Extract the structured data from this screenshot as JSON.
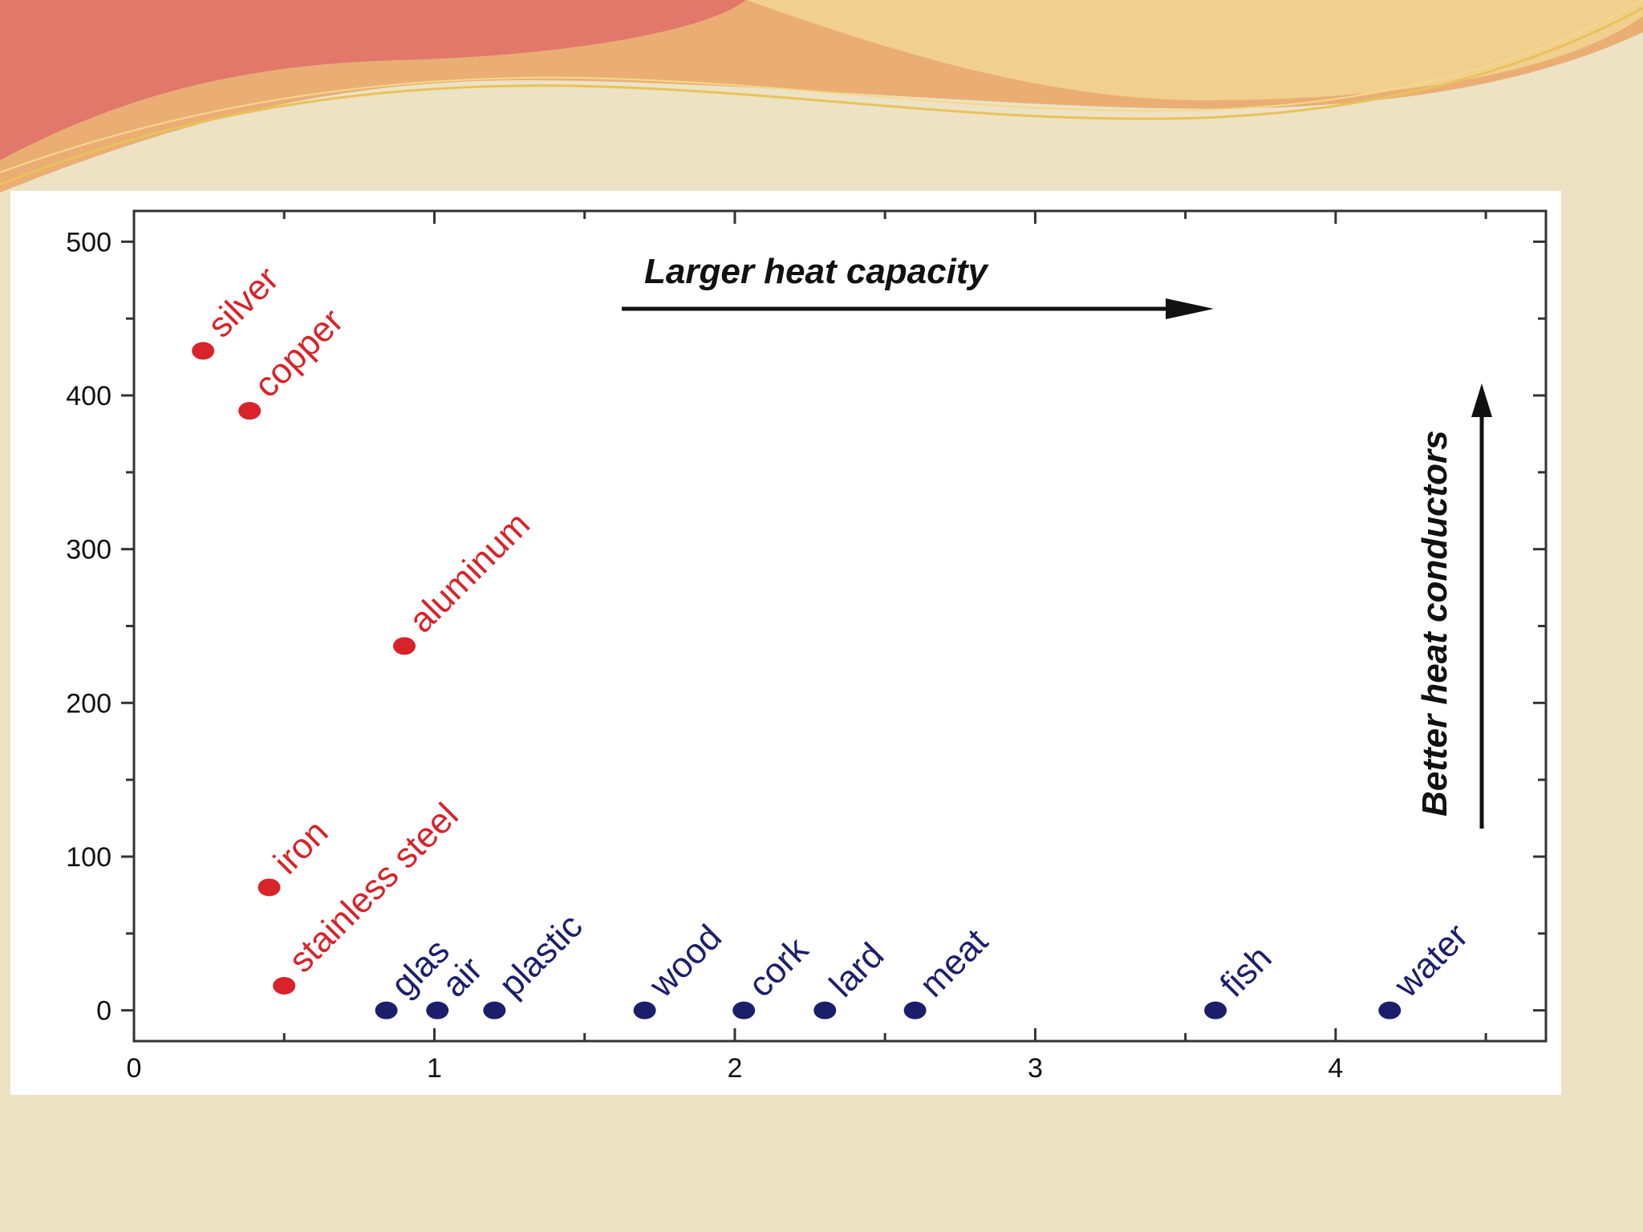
{
  "theme": {
    "background": "#ede2c4",
    "wave_colors": [
      "#e2786a",
      "#e9a86c",
      "#f1cf8e",
      "#e8c25a"
    ],
    "metal_color": "#d8232a",
    "nonmetal_color": "#1b1f6b"
  },
  "chart_data": {
    "type": "scatter",
    "xlim": [
      0,
      4.7
    ],
    "ylim": [
      -20,
      520
    ],
    "x_ticks": [
      0,
      1,
      2,
      3,
      4
    ],
    "y_ticks": [
      0,
      100,
      200,
      300,
      400,
      500
    ],
    "x_tick_labels": [
      "0",
      "1",
      "2",
      "3",
      "4"
    ],
    "y_tick_labels": [
      "0",
      "100",
      "200",
      "300",
      "400",
      "500"
    ],
    "grid": false,
    "series": [
      {
        "color": "#d8232a",
        "points": [
          {
            "label": "silver",
            "x": 0.23,
            "y": 429
          },
          {
            "label": "copper",
            "x": 0.385,
            "y": 390
          },
          {
            "label": "aluminum",
            "x": 0.9,
            "y": 237
          },
          {
            "label": "iron",
            "x": 0.45,
            "y": 80
          },
          {
            "label": "stainless steel",
            "x": 0.5,
            "y": 16
          }
        ]
      },
      {
        "color": "#1b1f6b",
        "points": [
          {
            "label": "glas",
            "x": 0.84,
            "y": 0
          },
          {
            "label": "air",
            "x": 1.01,
            "y": 0
          },
          {
            "label": "plastic",
            "x": 1.2,
            "y": 0
          },
          {
            "label": "wood",
            "x": 1.7,
            "y": 0
          },
          {
            "label": "cork",
            "x": 2.03,
            "y": 0
          },
          {
            "label": "lard",
            "x": 2.3,
            "y": 0
          },
          {
            "label": "meat",
            "x": 2.6,
            "y": 0
          },
          {
            "label": "fish",
            "x": 3.6,
            "y": 0
          },
          {
            "label": "water",
            "x": 4.18,
            "y": 0
          }
        ]
      }
    ],
    "annotations": {
      "horizontal_arrow_text": "Larger heat capacity",
      "vertical_arrow_text": "Better heat conductors"
    }
  }
}
